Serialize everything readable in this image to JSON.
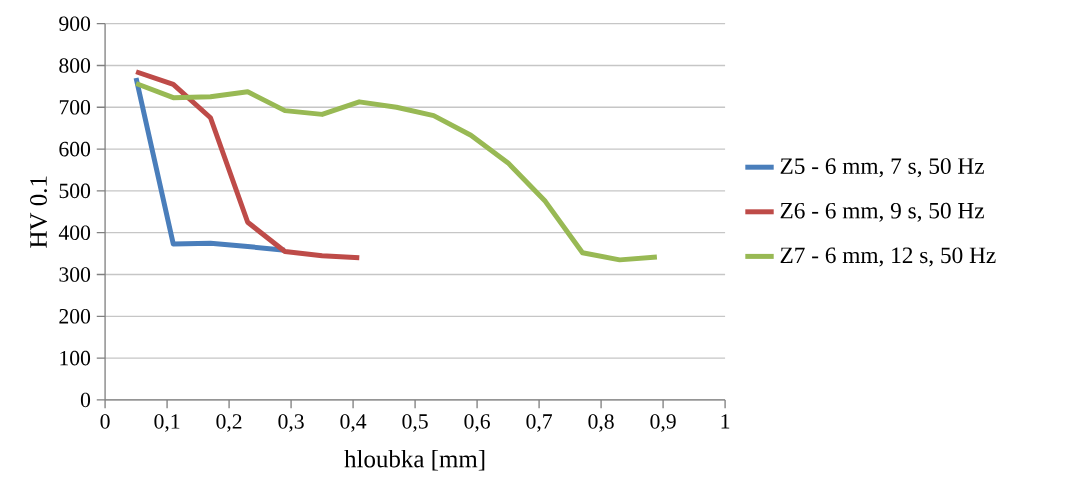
{
  "chart_data": {
    "type": "line",
    "xlabel": "hloubka [mm]",
    "ylabel": "HV 0.1",
    "xlim": [
      0,
      1
    ],
    "xticks": [
      {
        "value": 0,
        "label": "0"
      },
      {
        "value": 0.1,
        "label": "0,1"
      },
      {
        "value": 0.2,
        "label": "0,2"
      },
      {
        "value": 0.3,
        "label": "0,3"
      },
      {
        "value": 0.4,
        "label": "0,4"
      },
      {
        "value": 0.5,
        "label": "0,5"
      },
      {
        "value": 0.6,
        "label": "0,6"
      },
      {
        "value": 0.7,
        "label": "0,7"
      },
      {
        "value": 0.8,
        "label": "0,8"
      },
      {
        "value": 0.9,
        "label": "0,9"
      },
      {
        "value": 1,
        "label": "1"
      }
    ],
    "ylim": [
      0,
      900
    ],
    "yticks": [
      0,
      100,
      200,
      300,
      400,
      500,
      600,
      700,
      800,
      900
    ],
    "grid": "y",
    "legend": "right",
    "marker": "none",
    "line_style": "solid",
    "series": [
      {
        "name": "Z5 - 6 mm, 7 s, 50 Hz",
        "color": "#4a7ebb",
        "x": [
          0.05,
          0.11,
          0.17,
          0.23,
          0.29
        ],
        "values": [
          770,
          373,
          375,
          367,
          358
        ]
      },
      {
        "name": "Z6 - 6 mm, 9 s, 50 Hz",
        "color": "#be4b48",
        "x": [
          0.05,
          0.11,
          0.17,
          0.23,
          0.29,
          0.35,
          0.41
        ],
        "values": [
          785,
          755,
          675,
          425,
          355,
          345,
          340
        ]
      },
      {
        "name": "Z7 - 6 mm, 12 s, 50 Hz",
        "color": "#98b954",
        "x": [
          0.05,
          0.11,
          0.17,
          0.23,
          0.29,
          0.35,
          0.41,
          0.47,
          0.53,
          0.59,
          0.65,
          0.71,
          0.77,
          0.83,
          0.89
        ],
        "values": [
          757,
          723,
          725,
          737,
          692,
          683,
          713,
          700,
          680,
          633,
          567,
          475,
          352,
          335,
          342
        ]
      }
    ]
  }
}
